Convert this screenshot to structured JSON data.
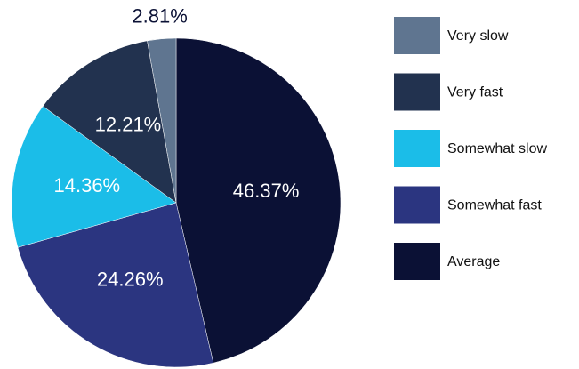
{
  "chart_data": {
    "type": "pie",
    "categories": [
      "Very slow",
      "Very fast",
      "Somewhat slow",
      "Somewhat fast",
      "Average"
    ],
    "values": [
      2.81,
      12.21,
      14.36,
      24.26,
      46.37
    ],
    "value_labels": [
      "2.81%",
      "12.21%",
      "14.36%",
      "24.26%",
      "46.37%"
    ],
    "colors": [
      "#5f7590",
      "#22324f",
      "#1bbde8",
      "#2b3580",
      "#0b1135"
    ],
    "legend": "right"
  }
}
